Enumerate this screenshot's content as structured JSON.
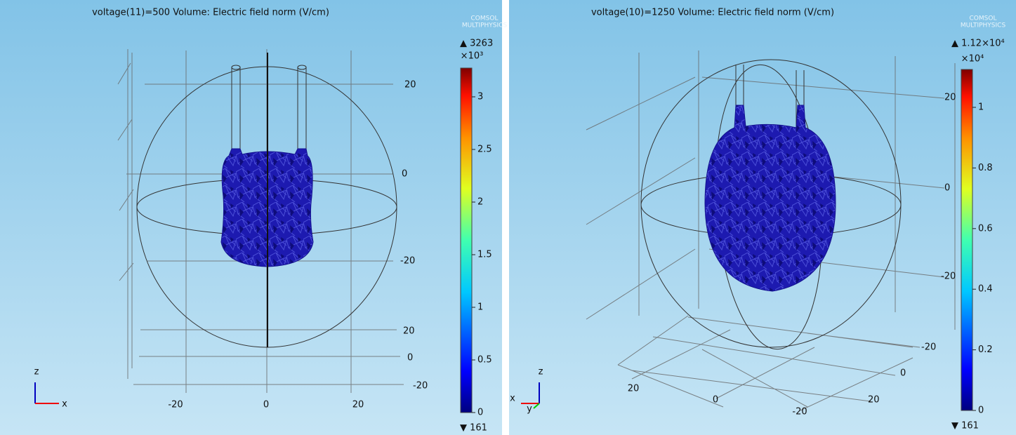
{
  "panels": [
    {
      "title": "voltage(11)=500   Volume: Electric field norm (V/cm)",
      "logo": [
        "COMSOL",
        "MULTIPHYSICS"
      ],
      "colorbar": {
        "max": "▲ 3263",
        "multiplier": "×10³",
        "ticks": [
          "3",
          "2.5",
          "2",
          "1.5",
          "1",
          "0.5",
          "0"
        ],
        "min": "▼ 161"
      },
      "axis_labels": [
        "20",
        "0",
        "-20",
        "20",
        "0",
        "-20",
        "-20",
        "0",
        "20"
      ],
      "triad": [
        "z",
        "x"
      ]
    },
    {
      "title": "voltage(10)=1250   Volume: Electric field norm (V/cm)",
      "logo": [
        "COMSOL",
        "MULTIPHYSICS"
      ],
      "colorbar": {
        "max": "▲ 1.12×10⁴",
        "multiplier": "×10⁴",
        "ticks": [
          "1",
          "0.8",
          "0.6",
          "0.4",
          "0.2",
          "0"
        ],
        "min": "▼ 161"
      },
      "axis_labels": [
        "20",
        "0",
        "-20",
        "-20",
        "0",
        "20",
        "20",
        "0",
        "-20"
      ],
      "triad": [
        "z",
        "x",
        "y"
      ]
    }
  ]
}
